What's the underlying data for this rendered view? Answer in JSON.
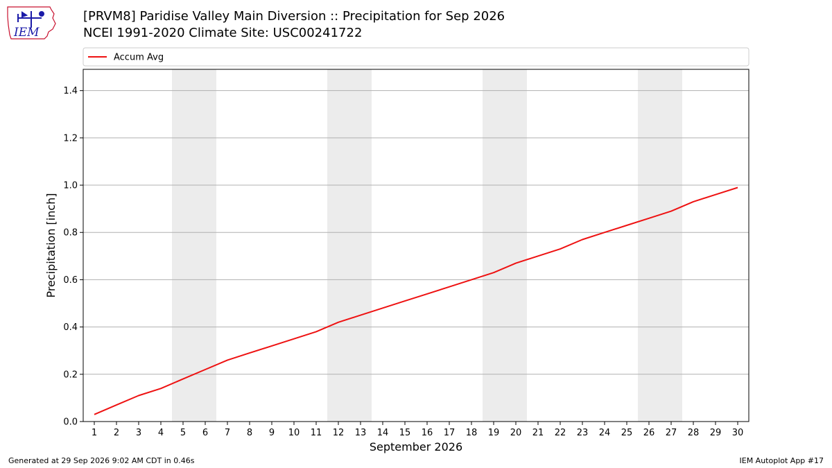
{
  "header": {
    "title_line1": "[PRVM8] Paridise Valley Main Diversion :: Precipitation for Sep 2026",
    "title_line2": "NCEI 1991-2020 Climate Site: USC00241722",
    "logo_text": "IEM"
  },
  "footer": {
    "generated": "Generated at 29 Sep 2026 9:02 AM CDT in 0.46s",
    "app": "IEM Autoplot App #17"
  },
  "colors": {
    "line": "#ee1111",
    "weekend": "#ececec",
    "grid": "#b0b0b0",
    "logo": "#1a1aa8",
    "logo_accent": "#c8102e"
  },
  "chart_data": {
    "type": "line",
    "title": "[PRVM8] Paridise Valley Main Diversion :: Precipitation for Sep 2026",
    "subtitle": "NCEI 1991-2020 Climate Site: USC00241722",
    "xlabel": "September 2026",
    "ylabel": "Precipitation [inch]",
    "x": [
      1,
      2,
      3,
      4,
      5,
      6,
      7,
      8,
      9,
      10,
      11,
      12,
      13,
      14,
      15,
      16,
      17,
      18,
      19,
      20,
      21,
      22,
      23,
      24,
      25,
      26,
      27,
      28,
      29,
      30
    ],
    "series": [
      {
        "name": "Accum Avg",
        "values": [
          0.03,
          0.07,
          0.11,
          0.14,
          0.18,
          0.22,
          0.26,
          0.29,
          0.32,
          0.35,
          0.38,
          0.42,
          0.45,
          0.48,
          0.51,
          0.54,
          0.57,
          0.6,
          0.63,
          0.67,
          0.7,
          0.73,
          0.77,
          0.8,
          0.83,
          0.86,
          0.89,
          0.93,
          0.96,
          0.99
        ]
      }
    ],
    "weekend_days": [
      [
        5,
        6
      ],
      [
        12,
        13
      ],
      [
        19,
        20
      ],
      [
        26,
        27
      ]
    ],
    "xlim": [
      0.5,
      30.5
    ],
    "ylim": [
      0,
      1.49
    ],
    "yticks": [
      0.0,
      0.2,
      0.4,
      0.6,
      0.8,
      1.0,
      1.2,
      1.4
    ],
    "ytick_labels": [
      "0.0",
      "0.2",
      "0.4",
      "0.6",
      "0.8",
      "1.0",
      "1.2",
      "1.4"
    ],
    "grid": "horizontal",
    "legend_placement": "top-above-plot"
  }
}
